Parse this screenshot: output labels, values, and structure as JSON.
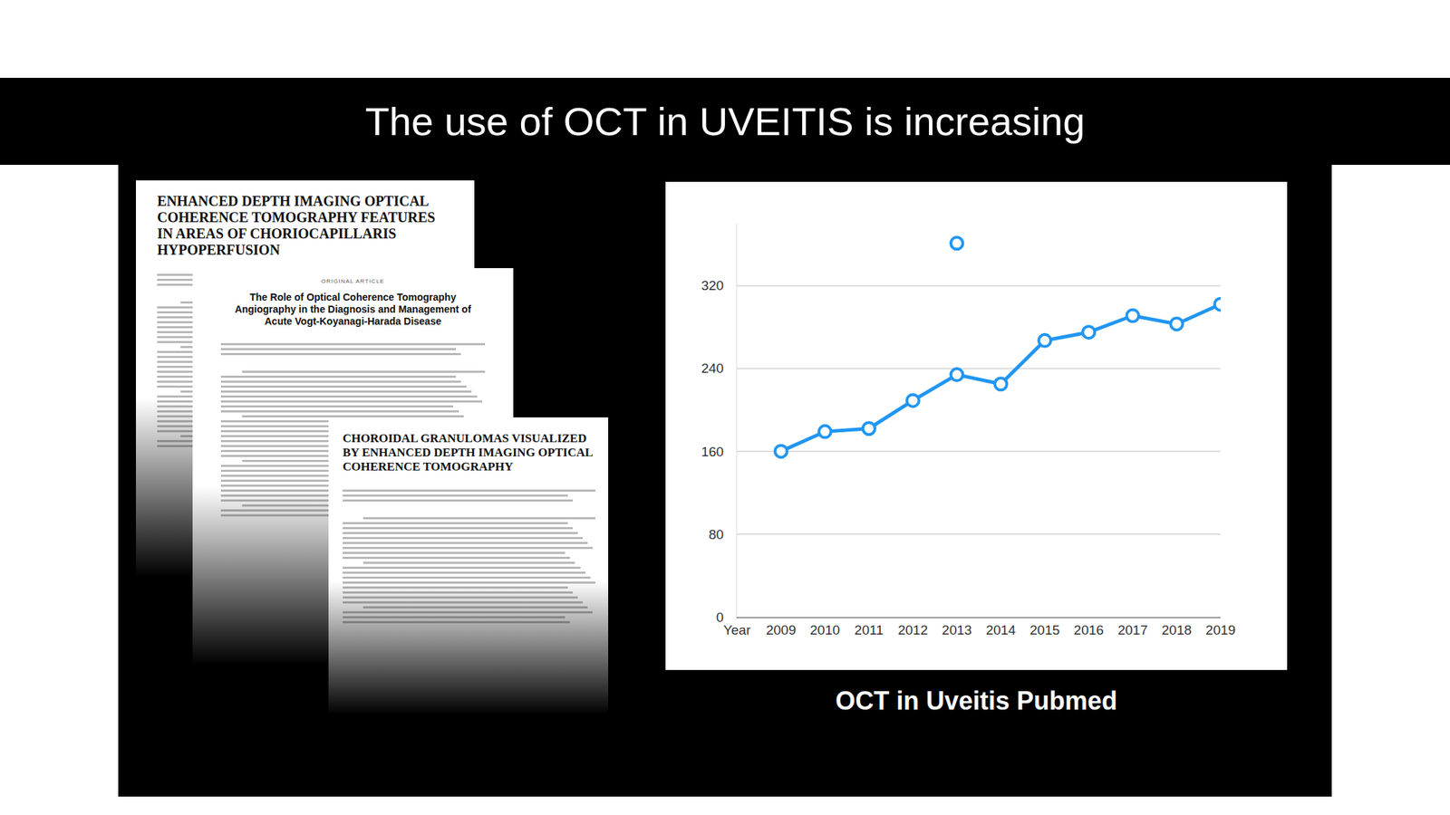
{
  "slide_title": "The use of OCT in UVEITIS is increasing",
  "papers": [
    {
      "title": "ENHANCED DEPTH IMAGING OPTICAL COHERENCE TOMOGRAPHY FEATURES IN AREAS OF CHORIOCAPILLARIS HYPOPERFUSION"
    },
    {
      "heading": "ORIGINAL ARTICLE",
      "title": "The Role of Optical Coherence Tomography Angiography in the Diagnosis and Management of Acute Vogt-Koyanagi-Harada Disease"
    },
    {
      "title": "CHOROIDAL GRANULOMAS VISUALIZED BY ENHANCED DEPTH IMAGING OPTICAL COHERENCE TOMOGRAPHY"
    }
  ],
  "chart_data": {
    "type": "line",
    "title": "OCT in Uveitis Pubmed",
    "x": [
      2009,
      2010,
      2011,
      2012,
      2013,
      2014,
      2015,
      2016,
      2017,
      2018,
      2019
    ],
    "series": [
      {
        "color": "#2196f3",
        "marker": "circle",
        "values": [
          160,
          179,
          182,
          209,
          234,
          225,
          267,
          275,
          291,
          283,
          302
        ]
      },
      {
        "type": "scatter",
        "color": "#2196f3",
        "marker": "circle",
        "values": [
          null,
          null,
          null,
          null,
          361,
          null,
          null,
          null,
          null,
          null,
          null
        ]
      }
    ],
    "xlim": [
      2008,
      2019
    ],
    "xticks": [
      {
        "value": 2008,
        "label": "Year"
      },
      2009,
      2010,
      2011,
      2012,
      2013,
      2014,
      2015,
      2016,
      2017,
      2018,
      2019
    ],
    "ylim": [
      0,
      380
    ],
    "yticks": [
      0,
      80,
      160,
      240,
      320
    ],
    "grid": true
  }
}
